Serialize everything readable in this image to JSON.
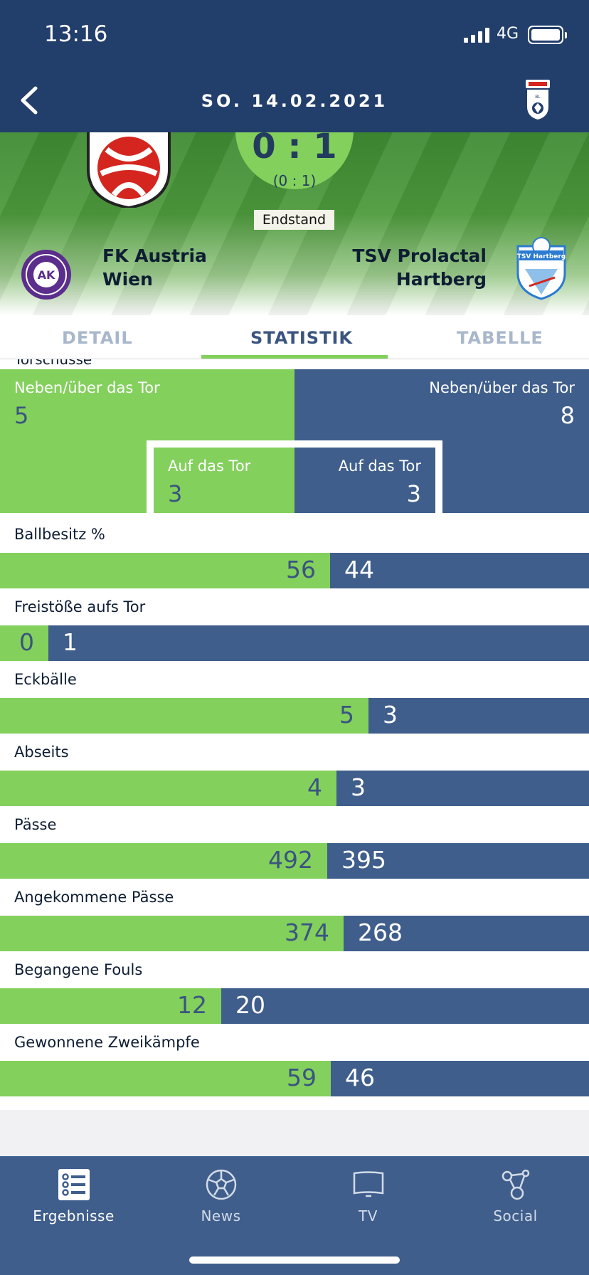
{
  "status": {
    "time": "13:16",
    "network": "4G"
  },
  "nav": {
    "date": "SO. 14.02.2021",
    "league_logo_text": "Tipico Bundesliga"
  },
  "match": {
    "score": "0 : 1",
    "halftime": "(0 : 1)",
    "state": "Endstand",
    "home": {
      "line1": "FK Austria",
      "line2": "Wien",
      "crest_color": "#5b2d8c"
    },
    "away": {
      "line1": "TSV Prolactal",
      "line2": "Hartberg",
      "crest_color": "#2a7bd1",
      "crest_text": "TSV Hartberg"
    }
  },
  "tabs": {
    "detail": "DETAIL",
    "statistik": "STATISTIK",
    "tabelle": "TABELLE",
    "active": "statistik"
  },
  "stats": {
    "section_cut": "Torschüsse",
    "shots": {
      "off_label": "Neben/über das Tor",
      "off_home": "5",
      "off_away": "8",
      "on_label": "Auf das Tor",
      "on_home": "3",
      "on_away": "3"
    },
    "rows": [
      {
        "name": "Ballbesitz %",
        "home": "56",
        "away": "44",
        "home_share": 0.56
      },
      {
        "name": "Freistöße aufs Tor",
        "home": "0",
        "away": "1",
        "home_share": 0.0
      },
      {
        "name": "Eckbälle",
        "home": "5",
        "away": "3",
        "home_share": 0.625
      },
      {
        "name": "Abseits",
        "home": "4",
        "away": "3",
        "home_share": 0.571
      },
      {
        "name": "Pässe",
        "home": "492",
        "away": "395",
        "home_share": 0.555
      },
      {
        "name": "Angekommene Pässe",
        "home": "374",
        "away": "268",
        "home_share": 0.583
      },
      {
        "name": "Begangene Fouls",
        "home": "12",
        "away": "20",
        "home_share": 0.375
      },
      {
        "name": "Gewonnene Zweikämpfe",
        "home": "59",
        "away": "46",
        "home_share": 0.562
      }
    ]
  },
  "colors": {
    "navy": "#223e6b",
    "home_green": "#83d05d",
    "away_blue": "#3f5e8c"
  },
  "tabbar": [
    {
      "label": "Ergebnisse",
      "icon": "results-list-icon",
      "active": true
    },
    {
      "label": "News",
      "icon": "soccer-ball-icon",
      "active": false
    },
    {
      "label": "TV",
      "icon": "tv-icon",
      "active": false
    },
    {
      "label": "Social",
      "icon": "share-nodes-icon",
      "active": false
    }
  ]
}
